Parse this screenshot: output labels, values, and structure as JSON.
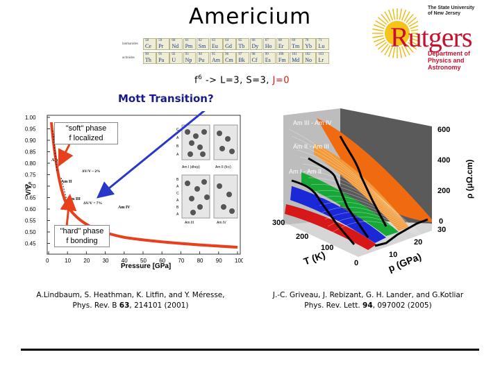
{
  "title": "Americium",
  "periodic_table": {
    "row1_label": "lanthanides",
    "row2_label": "actinides",
    "row1": [
      {
        "z": "58",
        "sym": "Ce"
      },
      {
        "z": "59",
        "sym": "Pr"
      },
      {
        "z": "60",
        "sym": "Nd"
      },
      {
        "z": "61",
        "sym": "Pm"
      },
      {
        "z": "62",
        "sym": "Sm"
      },
      {
        "z": "63",
        "sym": "Eu"
      },
      {
        "z": "64",
        "sym": "Gd"
      },
      {
        "z": "65",
        "sym": "Tb"
      },
      {
        "z": "66",
        "sym": "Dy"
      },
      {
        "z": "67",
        "sym": "Ho"
      },
      {
        "z": "68",
        "sym": "Er"
      },
      {
        "z": "69",
        "sym": "Tm"
      },
      {
        "z": "70",
        "sym": "Yb"
      },
      {
        "z": "71",
        "sym": "Lu"
      }
    ],
    "row2": [
      {
        "z": "90",
        "sym": "Th"
      },
      {
        "z": "91",
        "sym": "Pa"
      },
      {
        "z": "92",
        "sym": "U"
      },
      {
        "z": "93",
        "sym": "Np"
      },
      {
        "z": "94",
        "sym": "Pu"
      },
      {
        "z": "95",
        "sym": "Am"
      },
      {
        "z": "96",
        "sym": "Cm"
      },
      {
        "z": "97",
        "sym": "Bk"
      },
      {
        "z": "98",
        "sym": "Cf"
      },
      {
        "z": "99",
        "sym": "Es"
      },
      {
        "z": "100",
        "sym": "Fm"
      },
      {
        "z": "101",
        "sym": "Md"
      },
      {
        "z": "102",
        "sym": "No"
      },
      {
        "z": "103",
        "sym": "Lr"
      }
    ]
  },
  "logo": {
    "univ_line1": "The State University",
    "univ_line2": "of New Jersey",
    "wordmark": "Rutgers",
    "dept_line1": "Department of",
    "dept_line2": "Physics and Astronomy",
    "colors": {
      "red": "#c8102e",
      "sun": "#f2b705"
    }
  },
  "config": {
    "prefix": "f",
    "sup": "6",
    "rest": " -> L=3, S=3, ",
    "j": "J=0"
  },
  "mott": "Mott Transition?",
  "left_plot": {
    "soft_line1": "\"soft\" phase",
    "soft_line2": "f localized",
    "hard_line1": "\"hard\" phase",
    "hard_line2": "f bonding",
    "ylabel": "V/V₀",
    "xlabel": "Pressure [GPa]",
    "yticks": [
      "1.00",
      "0.95",
      "0.90",
      "0.85",
      "0.80",
      "0.75",
      "0.70",
      "0.65",
      "0.60",
      "0.55",
      "0.50",
      "0.45"
    ],
    "xticks": [
      "0",
      "10",
      "20",
      "30",
      "40",
      "50",
      "60",
      "70",
      "80",
      "90",
      "100"
    ],
    "phase_labels": [
      "Am I",
      "Am II",
      "Am III",
      "Am IV"
    ],
    "annot1": "ΔV/V ~ 2%",
    "annot2": "ΔV/V = 7%",
    "struct_labels": [
      "Am I (dhcp)",
      "Am II (fcc)",
      "Am III",
      "Am IV"
    ],
    "stack_letters": [
      "C",
      "A",
      "B",
      "A",
      "B",
      "A",
      "C",
      "A",
      "B",
      "A"
    ],
    "colors": {
      "curve": "#e8401c",
      "arrow_red": "#e8401c",
      "arrow_blue": "#2a36c8"
    }
  },
  "right_plot": {
    "phase_labels": [
      "Am III - Am IV",
      "Am II - Am III",
      "Am I - Am II"
    ],
    "rho_ticks": [
      "0",
      "200",
      "400",
      "600"
    ],
    "rho_label": "ρ (μΩ.cm)",
    "t_ticks": [
      "300",
      "200",
      "100",
      "0"
    ],
    "t_label": "T (K)",
    "p_ticks": [
      "0",
      "10",
      "20",
      "30"
    ],
    "p_label": "p (GPa)",
    "colors": {
      "orange": "#f06a10",
      "green": "#18a838",
      "blue": "#1a28d8",
      "red": "#d81818",
      "black": "#000000"
    }
  },
  "refs": {
    "left_line1": "A.Lindbaum, S. Heathman, K. Litfin, and Y. Méresse,",
    "left_line2a": "Phys. Rev. B ",
    "left_vol": "63",
    "left_line2b": ", 214101 (2001)",
    "right_line1": "J.-C. Griveau, J. Rebizant, G. H. Lander, and G.Kotliar",
    "right_line2a": "Phys. Rev. Lett. ",
    "right_vol": "94",
    "right_line2b": ", 097002 (2005)"
  }
}
